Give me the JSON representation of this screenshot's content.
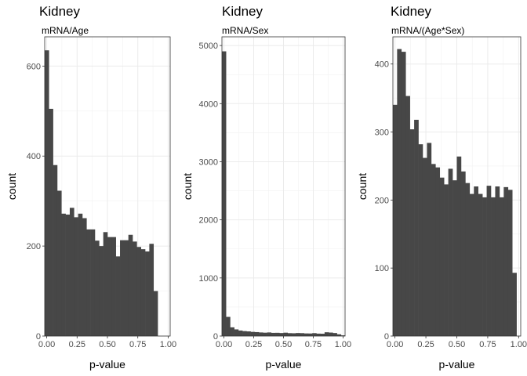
{
  "chart_data": [
    {
      "type": "bar",
      "title": "Kidney",
      "subtitle": "mRNA/Age",
      "xlabel": "p-value",
      "ylabel": "count",
      "xlim": [
        -0.0167,
        1.0167
      ],
      "ylim": [
        0,
        665
      ],
      "x_ticks": [
        0.0,
        0.25,
        0.5,
        0.75,
        1.0
      ],
      "x_tick_labels": [
        "0.00",
        "0.25",
        "0.50",
        "0.75",
        "1.00"
      ],
      "y_ticks": [
        0,
        200,
        400,
        600
      ],
      "y_tick_labels": [
        "0",
        "200",
        "400",
        "600"
      ],
      "grid": true,
      "x": [
        0.0,
        0.0345,
        0.069,
        0.1034,
        0.1379,
        0.1724,
        0.2069,
        0.2414,
        0.2759,
        0.3103,
        0.3448,
        0.3793,
        0.4138,
        0.4483,
        0.4828,
        0.5172,
        0.5517,
        0.5862,
        0.6207,
        0.6552,
        0.6897,
        0.7241,
        0.7586,
        0.7931,
        0.8276,
        0.8621,
        0.8966,
        0.931,
        0.9655,
        1.0
      ],
      "values": [
        635,
        505,
        380,
        323,
        272,
        270,
        285,
        264,
        272,
        262,
        237,
        237,
        212,
        200,
        231,
        220,
        220,
        177,
        213,
        213,
        225,
        210,
        198,
        193,
        188,
        205,
        100,
        0,
        0,
        0
      ]
    },
    {
      "type": "bar",
      "title": "Kidney",
      "subtitle": "mRNA/Sex",
      "xlabel": "p-value",
      "ylabel": "count",
      "xlim": [
        -0.0167,
        1.0167
      ],
      "ylim": [
        0,
        5150
      ],
      "x_ticks": [
        0.0,
        0.25,
        0.5,
        0.75,
        1.0
      ],
      "x_tick_labels": [
        "0.00",
        "0.25",
        "0.50",
        "0.75",
        "1.00"
      ],
      "y_ticks": [
        0,
        1000,
        2000,
        3000,
        4000,
        5000
      ],
      "y_tick_labels": [
        "0",
        "1000",
        "2000",
        "3000",
        "4000",
        "5000"
      ],
      "grid": true,
      "x": [
        0.0,
        0.0345,
        0.069,
        0.1034,
        0.1379,
        0.1724,
        0.2069,
        0.2414,
        0.2759,
        0.3103,
        0.3448,
        0.3793,
        0.4138,
        0.4483,
        0.4828,
        0.5172,
        0.5517,
        0.5862,
        0.6207,
        0.6552,
        0.6897,
        0.7241,
        0.7586,
        0.7931,
        0.8276,
        0.8621,
        0.8966,
        0.931,
        0.9655,
        1.0
      ],
      "values": [
        4900,
        330,
        150,
        115,
        95,
        85,
        80,
        72,
        68,
        62,
        58,
        62,
        55,
        56,
        52,
        58,
        50,
        48,
        52,
        50,
        45,
        44,
        50,
        42,
        40,
        65,
        60,
        52,
        30,
        12
      ]
    },
    {
      "type": "bar",
      "title": "Kidney",
      "subtitle": "mRNA/(Age*Sex)",
      "xlabel": "p-value",
      "ylabel": "count",
      "xlim": [
        -0.0167,
        1.0167
      ],
      "ylim": [
        0,
        440
      ],
      "x_ticks": [
        0.0,
        0.25,
        0.5,
        0.75,
        1.0
      ],
      "x_tick_labels": [
        "0.00",
        "0.25",
        "0.50",
        "0.75",
        "1.00"
      ],
      "y_ticks": [
        0,
        100,
        200,
        300,
        400
      ],
      "y_tick_labels": [
        "0",
        "100",
        "200",
        "300",
        "400"
      ],
      "grid": true,
      "x": [
        0.0,
        0.0345,
        0.069,
        0.1034,
        0.1379,
        0.1724,
        0.2069,
        0.2414,
        0.2759,
        0.3103,
        0.3448,
        0.3793,
        0.4138,
        0.4483,
        0.4828,
        0.5172,
        0.5517,
        0.5862,
        0.6207,
        0.6552,
        0.6897,
        0.7241,
        0.7586,
        0.7931,
        0.8276,
        0.8621,
        0.8966,
        0.931,
        0.9655,
        1.0
      ],
      "values": [
        340,
        422,
        418,
        353,
        304,
        318,
        282,
        262,
        284,
        253,
        248,
        233,
        223,
        246,
        229,
        264,
        242,
        225,
        209,
        220,
        209,
        204,
        221,
        204,
        220,
        204,
        219,
        215,
        93,
        0
      ]
    }
  ]
}
